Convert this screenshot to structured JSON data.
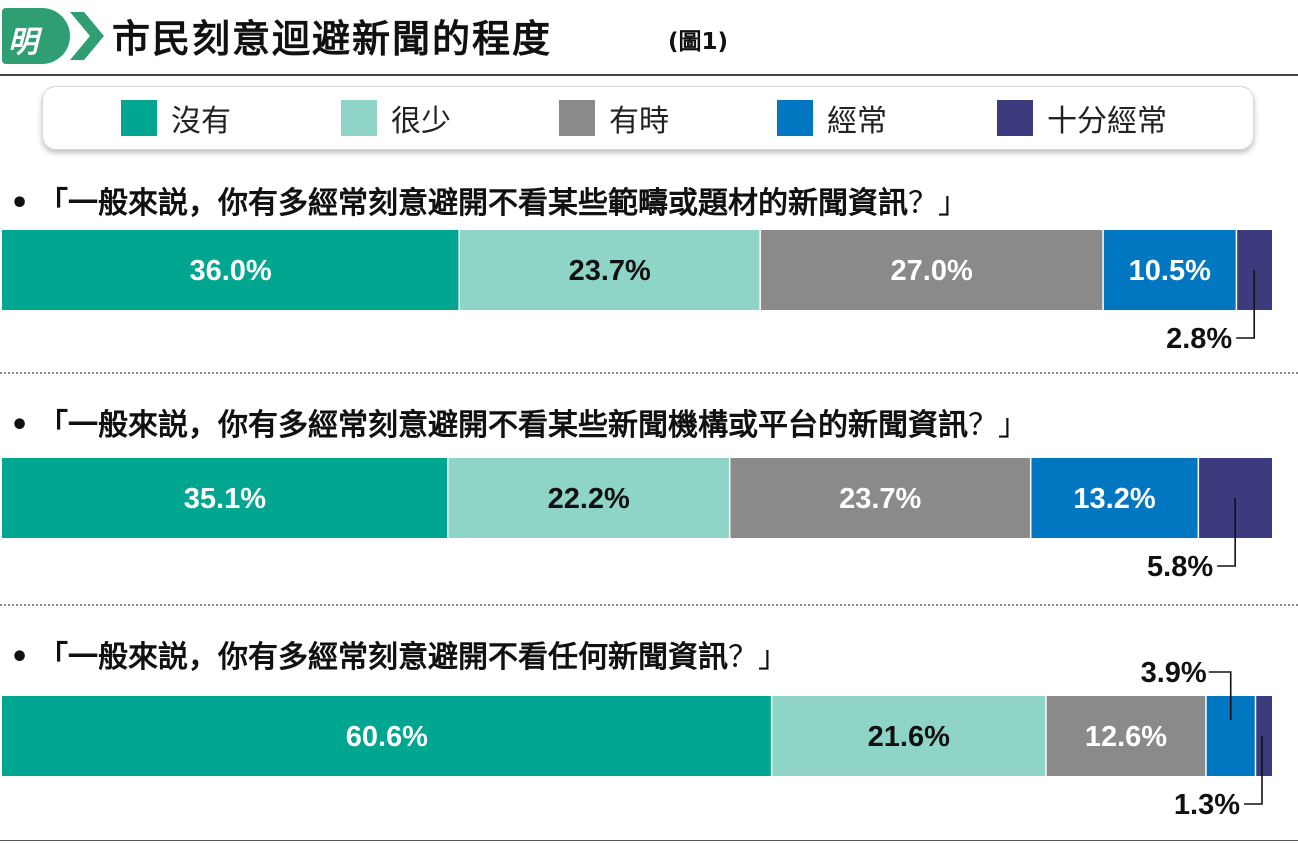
{
  "header": {
    "logo_text": "明",
    "title": "市民刻意迴避新聞的程度",
    "note": "(圖1)"
  },
  "legend": [
    {
      "label": "沒有",
      "color": "#00a68f"
    },
    {
      "label": "很少",
      "color": "#8fd5c7"
    },
    {
      "label": "有時",
      "color": "#8a8a8a"
    },
    {
      "label": "經常",
      "color": "#0077c0"
    },
    {
      "label": "十分經常",
      "color": "#3b3b7e"
    }
  ],
  "questions": [
    {
      "bullet": "•",
      "text": "「一般來説，你有多經常刻意避開不看某些範疇或題材的新聞資訊",
      "mark": "？」"
    },
    {
      "bullet": "•",
      "text": "「一般來説，你有多經常刻意避開不看某些新聞機構或平台的新聞資訊",
      "mark": "？」"
    },
    {
      "bullet": "•",
      "text": "「一般來説，你有多經常刻意避開不看任何新聞資訊",
      "mark": "？」"
    }
  ],
  "chart_data": {
    "type": "bar",
    "stacked": true,
    "orientation": "horizontal",
    "normalized": "percent",
    "series_names": [
      "沒有",
      "很少",
      "有時",
      "經常",
      "十分經常"
    ],
    "colors": [
      "#00a68f",
      "#8fd5c7",
      "#8a8a8a",
      "#0077c0",
      "#3b3b7e"
    ],
    "label_colors": [
      "#ffffff",
      "#111111",
      "#ffffff",
      "#ffffff",
      "#ffffff"
    ],
    "rows": [
      {
        "values": [
          36.0,
          23.7,
          27.0,
          10.5,
          2.8
        ],
        "labels": [
          "36.0%",
          "23.7%",
          "27.0%",
          "10.5%",
          "2.8%"
        ]
      },
      {
        "values": [
          35.1,
          22.2,
          23.7,
          13.2,
          5.8
        ],
        "labels": [
          "35.1%",
          "22.2%",
          "23.7%",
          "13.2%",
          "5.8%"
        ]
      },
      {
        "values": [
          60.6,
          21.6,
          12.6,
          3.9,
          1.3
        ],
        "labels": [
          "60.6%",
          "21.6%",
          "12.6%",
          "3.9%",
          "1.3%"
        ]
      }
    ]
  }
}
